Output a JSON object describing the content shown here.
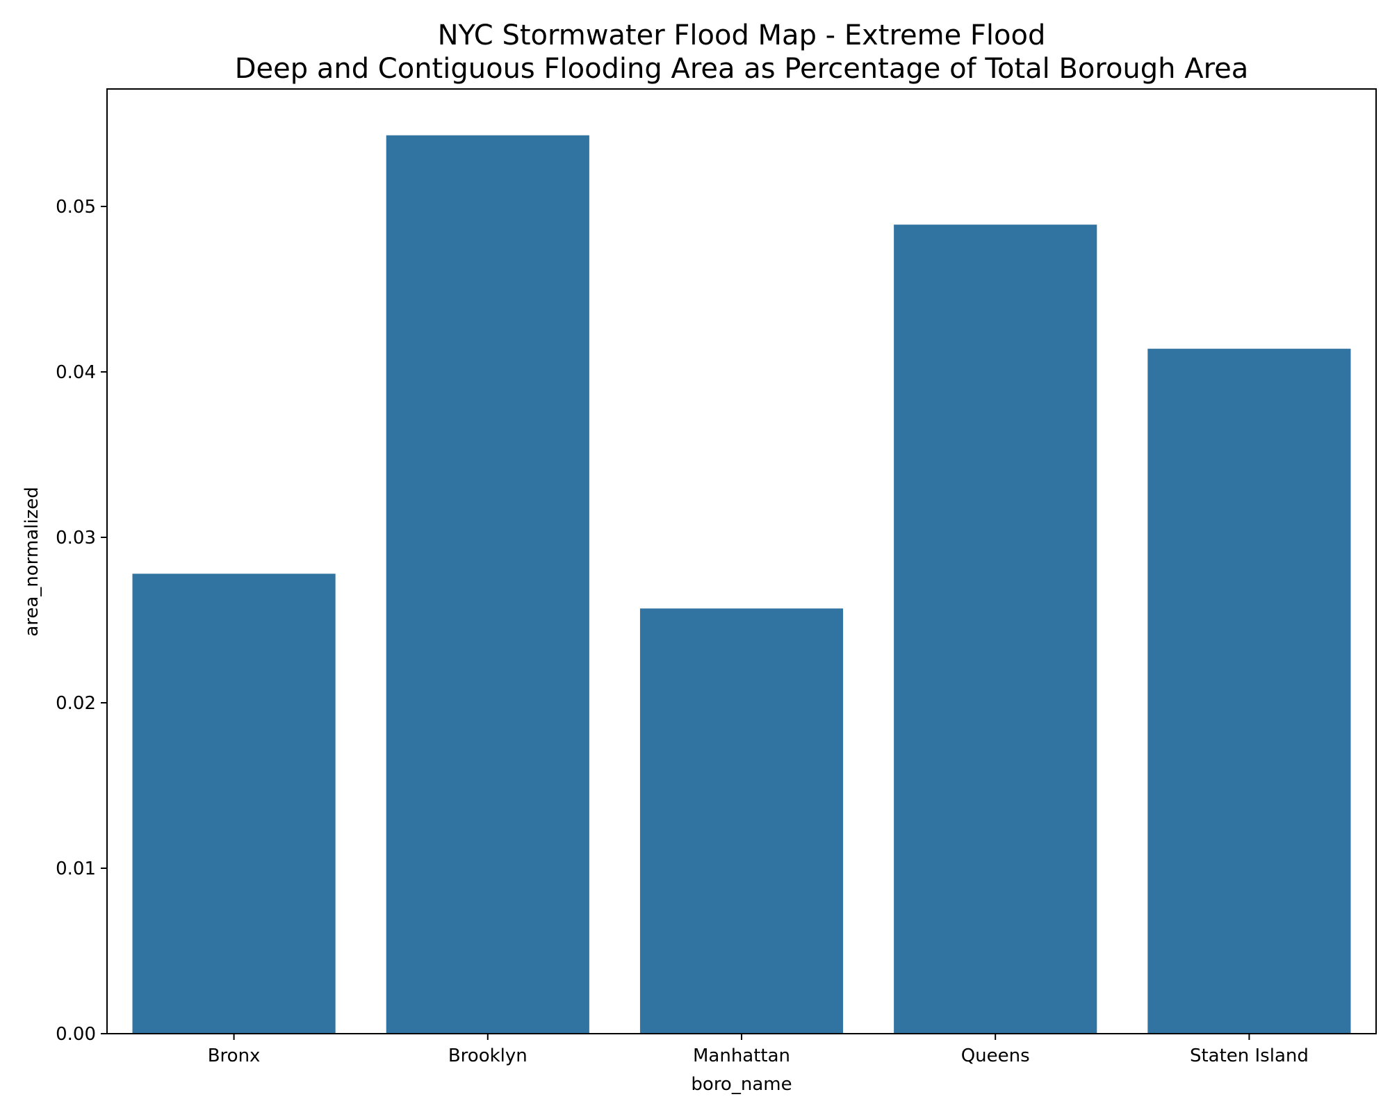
{
  "chart_data": {
    "type": "bar",
    "title": "NYC Stormwater Flood Map - Extreme Flood",
    "subtitle": "Deep and Contiguous Flooding Area as Percentage of Total Borough Area",
    "xlabel": "boro_name",
    "ylabel": "area_normalized",
    "categories": [
      "Bronx",
      "Brooklyn",
      "Manhattan",
      "Queens",
      "Staten Island"
    ],
    "values": [
      0.0278,
      0.0543,
      0.0257,
      0.0489,
      0.0414
    ],
    "ylim": [
      0,
      0.0571
    ],
    "yticks": [
      0.0,
      0.01,
      0.02,
      0.03,
      0.04,
      0.05
    ],
    "ytick_labels": [
      "0.00",
      "0.01",
      "0.02",
      "0.03",
      "0.04",
      "0.05"
    ],
    "grid": false,
    "legend": "none",
    "bar_color": "#3274a1",
    "axes_color": "#000000"
  }
}
